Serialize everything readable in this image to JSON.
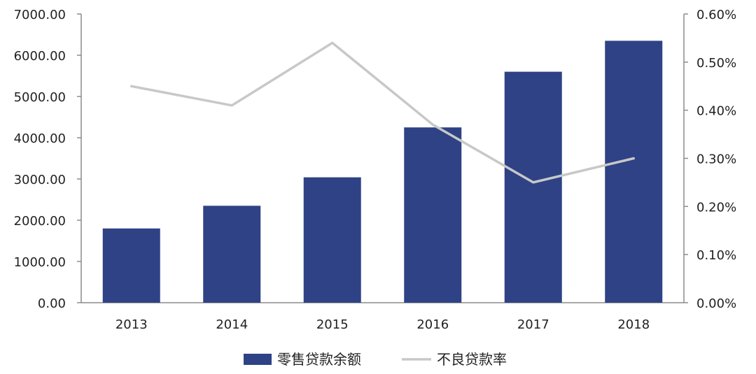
{
  "chart_data": {
    "type": "bar+line",
    "categories": [
      "2013",
      "2014",
      "2015",
      "2016",
      "2017",
      "2018"
    ],
    "series": [
      {
        "name": "零售贷款余额",
        "type": "bar",
        "axis": "left",
        "values": [
          1800,
          2350,
          3040,
          4250,
          5600,
          6350
        ],
        "color": "#2e4285"
      },
      {
        "name": "不良贷款率",
        "type": "line",
        "axis": "right",
        "values": [
          0.45,
          0.41,
          0.54,
          0.37,
          0.25,
          0.3
        ],
        "color": "#c8c8c8"
      }
    ],
    "y_left": {
      "ylim": [
        0,
        7000
      ],
      "ticks": [
        "0.00",
        "1000.00",
        "2000.00",
        "3000.00",
        "4000.00",
        "5000.00",
        "6000.00",
        "7000.00"
      ]
    },
    "y_right": {
      "ylim": [
        0,
        0.6
      ],
      "unit": "%",
      "ticks": [
        "0.00%",
        "0.10%",
        "0.20%",
        "0.30%",
        "0.40%",
        "0.50%",
        "0.60%"
      ]
    },
    "grid": false,
    "legend_position": "bottom"
  }
}
